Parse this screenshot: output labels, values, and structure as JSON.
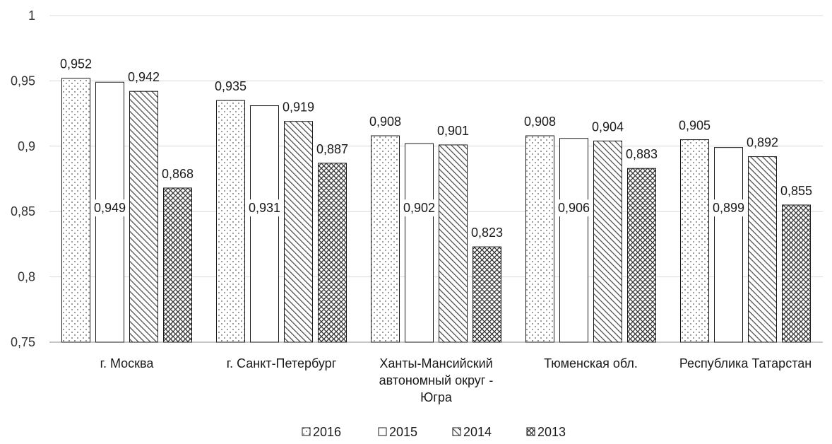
{
  "chart_data": {
    "type": "bar",
    "categories": [
      [
        "г. Москва"
      ],
      [
        "г. Санкт-Петербург"
      ],
      [
        "Ханты-Мансийский",
        "автономный округ -",
        "Югра"
      ],
      [
        "Тюменская обл."
      ],
      [
        "Республика Татарстан"
      ]
    ],
    "series": [
      {
        "name": "2016",
        "pattern": "dots",
        "values": [
          0.952,
          0.935,
          0.908,
          0.908,
          0.905
        ],
        "labels": [
          "0,952",
          "0,935",
          "0,908",
          "0,908",
          "0,905"
        ]
      },
      {
        "name": "2015",
        "pattern": "plain",
        "values": [
          0.949,
          0.931,
          0.902,
          0.906,
          0.899
        ],
        "labels": [
          "0,949",
          "0,931",
          "0,902",
          "0,906",
          "0,899"
        ]
      },
      {
        "name": "2014",
        "pattern": "diagonal",
        "values": [
          0.942,
          0.919,
          0.901,
          0.904,
          0.892
        ],
        "labels": [
          "0,942",
          "0,919",
          "0,901",
          "0,904",
          "0,892"
        ]
      },
      {
        "name": "2013",
        "pattern": "crosshatch",
        "values": [
          0.868,
          0.887,
          0.823,
          0.883,
          0.855
        ],
        "labels": [
          "0,868",
          "0,887",
          "0,823",
          "0,883",
          "0,855"
        ]
      }
    ],
    "ylim": [
      0.75,
      1
    ],
    "yticks": [
      0.75,
      0.8,
      0.85,
      0.9,
      0.95,
      1
    ],
    "ytick_labels": [
      "0,75",
      "0,8",
      "0,85",
      "0,9",
      "0,95",
      "1"
    ],
    "grid": true,
    "legend": "bottom-center",
    "title": "",
    "xlabel": "",
    "ylabel": ""
  }
}
